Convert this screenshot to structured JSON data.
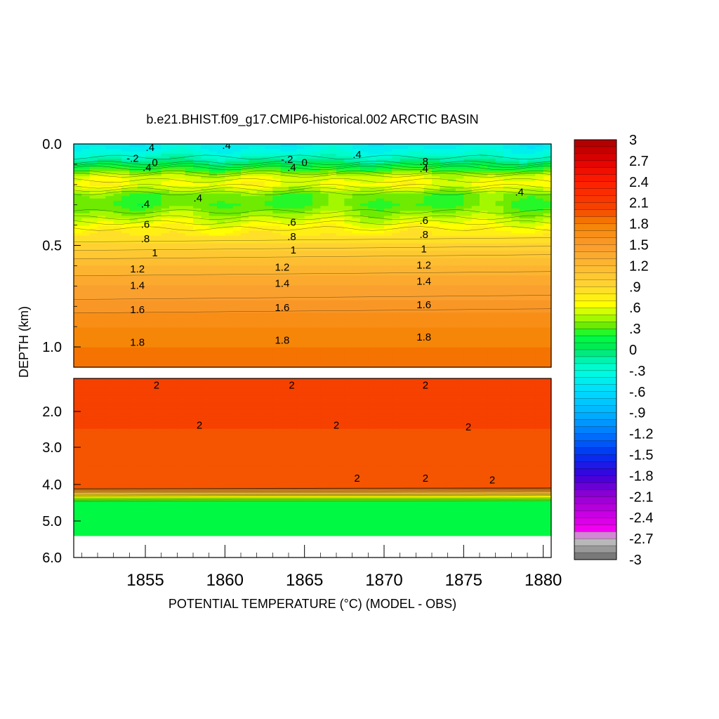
{
  "chart_data": {
    "type": "heatmap",
    "title": "b.e21.BHIST.f09_g17.CMIP6-historical.002 ARCTIC BASIN",
    "xlabel": "POTENTIAL TEMPERATURE (°C) (MODEL - OBS)",
    "ylabel": "DEPTH (km)",
    "xlim": [
      1850.5,
      1880.5
    ],
    "x_ticks": [
      "1855",
      "1860",
      "1865",
      "1870",
      "1875",
      "1880"
    ],
    "x_tick_values": [
      1855,
      1860,
      1865,
      1870,
      1875,
      1880
    ],
    "upper_panel": {
      "ylim": [
        0.0,
        1.1
      ],
      "y_ticks": [
        "0.0",
        "0.5",
        "1.0"
      ],
      "y_tick_values": [
        0.0,
        0.5,
        1.0
      ],
      "profile_depth": [
        0.0,
        0.02,
        0.05,
        0.08,
        0.1,
        0.13,
        0.16,
        0.2,
        0.25,
        0.3,
        0.35,
        0.4,
        0.45,
        0.5,
        0.55,
        0.6,
        0.7,
        0.8,
        0.9,
        1.0,
        1.1
      ],
      "profile_value": [
        -0.45,
        -0.4,
        -0.3,
        -0.1,
        0.05,
        0.3,
        0.55,
        0.65,
        0.35,
        0.3,
        0.45,
        0.65,
        0.8,
        0.95,
        1.05,
        1.2,
        1.4,
        1.55,
        1.7,
        1.8,
        1.85
      ]
    },
    "lower_panel": {
      "ylim": [
        1.1,
        6.0
      ],
      "y_ticks": [
        "2.0",
        "3.0",
        "4.0",
        "5.0",
        "6.0"
      ],
      "y_tick_values": [
        2.0,
        3.0,
        4.0,
        5.0,
        6.0
      ],
      "profile_depth": [
        1.1,
        1.5,
        2.0,
        2.5,
        3.0,
        3.5,
        3.8,
        4.1,
        4.15,
        4.25,
        4.35,
        4.5,
        5.0,
        5.4
      ],
      "profile_value": [
        2.0,
        2.02,
        2.03,
        2.0,
        1.95,
        1.9,
        1.95,
        2.0,
        1.5,
        1.0,
        0.5,
        0.1,
        0.1,
        0.1
      ],
      "data_bottom_depth": 5.4
    },
    "contour_labels": [
      {
        "text": ".4",
        "x": 1855.3,
        "y": 0.02
      },
      {
        "text": "-.2",
        "x": 1854.2,
        "y": 0.075
      },
      {
        "text": "0",
        "x": 1855.6,
        "y": 0.095
      },
      {
        "text": ".4",
        "x": 1855.1,
        "y": 0.12
      },
      {
        "text": ".4",
        "x": 1860.1,
        "y": 0.01
      },
      {
        "text": "-.2",
        "x": 1863.9,
        "y": 0.08
      },
      {
        "text": "0",
        "x": 1865.0,
        "y": 0.095
      },
      {
        "text": ".4",
        "x": 1864.2,
        "y": 0.12
      },
      {
        "text": ".4",
        "x": 1868.3,
        "y": 0.055
      },
      {
        "text": ".8",
        "x": 1872.5,
        "y": 0.09
      },
      {
        "text": ".4",
        "x": 1872.5,
        "y": 0.125
      },
      {
        "text": ".4",
        "x": 1858.3,
        "y": 0.27
      },
      {
        "text": ".4",
        "x": 1855.0,
        "y": 0.3
      },
      {
        "text": ".4",
        "x": 1878.5,
        "y": 0.24
      },
      {
        "text": ".6",
        "x": 1855.0,
        "y": 0.4
      },
      {
        "text": ".6",
        "x": 1864.2,
        "y": 0.39
      },
      {
        "text": ".6",
        "x": 1872.5,
        "y": 0.38
      },
      {
        "text": ".8",
        "x": 1855.0,
        "y": 0.47
      },
      {
        "text": ".8",
        "x": 1864.2,
        "y": 0.46
      },
      {
        "text": ".8",
        "x": 1872.5,
        "y": 0.45
      },
      {
        "text": "1",
        "x": 1855.6,
        "y": 0.54
      },
      {
        "text": "1",
        "x": 1864.3,
        "y": 0.525
      },
      {
        "text": "1",
        "x": 1872.5,
        "y": 0.52
      },
      {
        "text": "1.2",
        "x": 1854.5,
        "y": 0.62
      },
      {
        "text": "1.2",
        "x": 1863.6,
        "y": 0.61
      },
      {
        "text": "1.2",
        "x": 1872.5,
        "y": 0.6
      },
      {
        "text": "1.4",
        "x": 1854.5,
        "y": 0.7
      },
      {
        "text": "1.4",
        "x": 1863.6,
        "y": 0.69
      },
      {
        "text": "1.4",
        "x": 1872.5,
        "y": 0.68
      },
      {
        "text": "1.6",
        "x": 1854.5,
        "y": 0.82
      },
      {
        "text": "1.6",
        "x": 1863.6,
        "y": 0.81
      },
      {
        "text": "1.6",
        "x": 1872.5,
        "y": 0.795
      },
      {
        "text": "1.8",
        "x": 1854.5,
        "y": 0.98
      },
      {
        "text": "1.8",
        "x": 1863.6,
        "y": 0.97
      },
      {
        "text": "1.8",
        "x": 1872.5,
        "y": 0.955
      },
      {
        "text": "2",
        "x": 1855.7,
        "y": 1.3
      },
      {
        "text": "2",
        "x": 1864.2,
        "y": 1.3
      },
      {
        "text": "2",
        "x": 1872.6,
        "y": 1.3
      },
      {
        "text": "2",
        "x": 1858.4,
        "y": 2.4
      },
      {
        "text": "2",
        "x": 1867.0,
        "y": 2.4
      },
      {
        "text": "2",
        "x": 1875.3,
        "y": 2.45
      },
      {
        "text": "2",
        "x": 1868.3,
        "y": 3.85
      },
      {
        "text": "2",
        "x": 1872.6,
        "y": 3.85
      },
      {
        "text": "2",
        "x": 1876.8,
        "y": 3.9
      }
    ],
    "colorbar": {
      "ticks": [
        "3",
        "2.7",
        "2.4",
        "2.1",
        "1.8",
        "1.5",
        "1.2",
        ".9",
        ".6",
        ".3",
        "0",
        "-.3",
        "-.6",
        "-.9",
        "-1.2",
        "-1.5",
        "-1.8",
        "-2.1",
        "-2.4",
        "-2.7",
        "-3"
      ],
      "min": -3,
      "max": 3,
      "levels": 60
    }
  }
}
